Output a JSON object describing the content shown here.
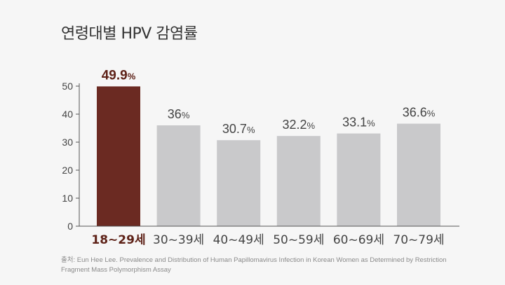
{
  "title": "연령대별 HPV 감염률",
  "source": "출처: Eun Hee Lee. Prevalence and Distribution of Human Papillomavirus Infection in Korean Women as Determined by Restriction Fragment Mass Polymorphism Assay",
  "colors": {
    "highlight_bar": "#6b2a22",
    "highlight_text": "#5e2218",
    "bar": "#c9c9cb",
    "text": "#444444",
    "axis": "#555555"
  },
  "chart_data": {
    "type": "bar",
    "title": "연령대별 HPV 감염률",
    "xlabel": "",
    "ylabel": "",
    "categories": [
      "18~29세",
      "30~39세",
      "40~49세",
      "50~59세",
      "60~69세",
      "70~79세"
    ],
    "values": [
      49.9,
      36,
      30.7,
      32.2,
      33.1,
      36.6
    ],
    "value_labels": [
      "49.9",
      "36",
      "30.7",
      "32.2",
      "33.1",
      "36.6"
    ],
    "unit": "%",
    "highlight_index": 0,
    "ylim": [
      0,
      50
    ],
    "yticks": [
      0,
      10,
      20,
      30,
      40,
      50
    ],
    "grid": false
  }
}
